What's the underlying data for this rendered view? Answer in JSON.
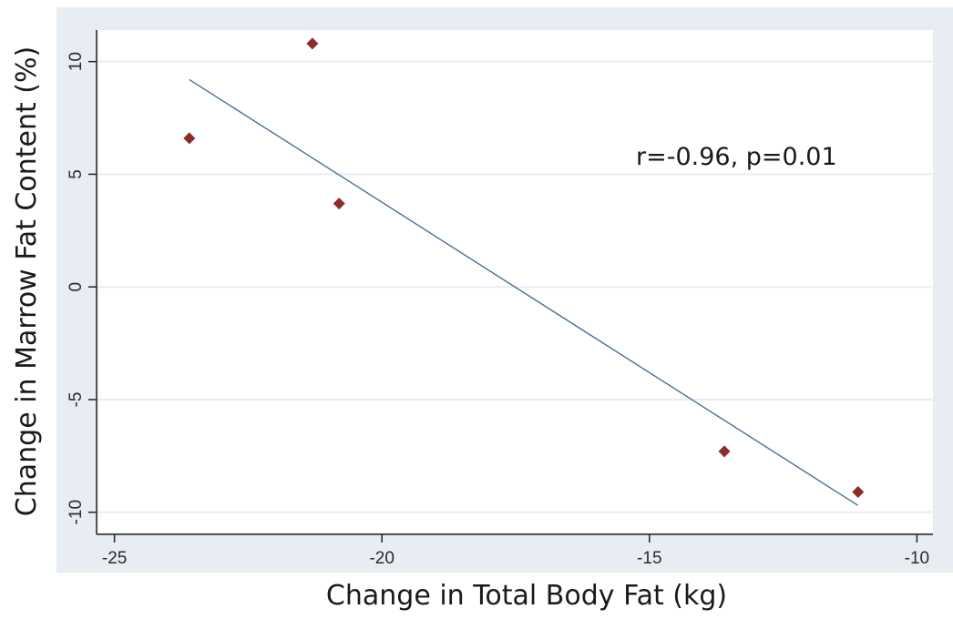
{
  "chart_data": {
    "type": "scatter",
    "title": "",
    "xlabel": "Change in Total Body Fat (kg)",
    "ylabel": "Change in Marrow Fat Content (%)",
    "xlim": [
      -25.3,
      -9.7
    ],
    "ylim": [
      -10.9,
      11.4
    ],
    "x_ticks": [
      -25,
      -20,
      -15,
      -10
    ],
    "x_tick_labels": [
      "-25",
      "-20",
      "-15",
      "-10"
    ],
    "y_ticks": [
      -10,
      -5,
      0,
      5,
      10
    ],
    "y_tick_labels": [
      "-10",
      "-5",
      "0",
      "5",
      "10"
    ],
    "grid": "horizontal",
    "points": [
      {
        "x": -23.6,
        "y": 6.6
      },
      {
        "x": -21.3,
        "y": 10.8
      },
      {
        "x": -20.8,
        "y": 3.7
      },
      {
        "x": -13.6,
        "y": -7.3
      },
      {
        "x": -11.1,
        "y": -9.1
      }
    ],
    "fit_line": {
      "x": [
        -23.6,
        -11.1
      ],
      "y": [
        9.2,
        -9.7
      ]
    },
    "annotation": "r=-0.96, p=0.01",
    "colors": {
      "background": "#e8edf3",
      "plot_area": "#ffffff",
      "grid": "#e8edf3",
      "marker": "#8c2b2b",
      "fit_line": "#4a6f94",
      "axis": "#222222"
    }
  }
}
